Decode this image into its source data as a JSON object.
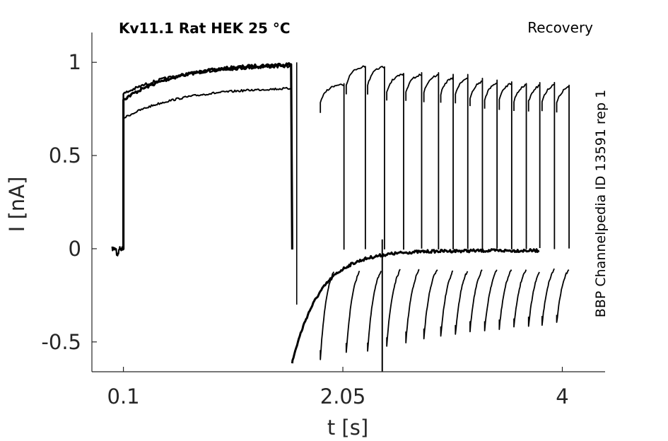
{
  "chart_data": {
    "type": "line",
    "title": "Kv11.1  Rat  HEK  25 °C",
    "subtitle": "Recovery",
    "side_label": "BBP Channelpedia ID 13591 rep 1",
    "xlabel": "t [s]",
    "ylabel": "I [nA]",
    "xlim": [
      -0.18,
      4.38
    ],
    "ylim": [
      -0.66,
      1.16
    ],
    "xticks": [
      0.1,
      2.05,
      4
    ],
    "xtick_labels": [
      "0.1",
      "2.05",
      "4"
    ],
    "yticks": [
      -0.5,
      0,
      0.5,
      1
    ],
    "ytick_labels": [
      "-0.5",
      "0",
      "0.5",
      "1"
    ],
    "grid": false,
    "line_color": "#000000",
    "prepulse": {
      "t_start": 0.1,
      "t_end": 1.6,
      "i_onset_upper": 0.8,
      "i_end_upper": 0.99,
      "i_onset_lower": 0.7,
      "i_end_lower": 0.86
    },
    "tail_min_nA": -0.61,
    "tail_baseline_nA": -0.01,
    "interval_starts_s": [
      1.85,
      2.08,
      2.27,
      2.44,
      2.61,
      2.77,
      2.92,
      3.05,
      3.18,
      3.31,
      3.44,
      3.57,
      3.7,
      3.82,
      3.95,
      4.08
    ],
    "interval_peaks_nA": [
      0.88,
      0.98,
      0.98,
      0.94,
      0.94,
      0.94,
      0.93,
      0.93,
      0.91,
      0.9,
      0.9,
      0.89,
      0.89,
      0.89,
      0.88,
      0.87
    ],
    "interval_dips_nA": [
      -0.54,
      -0.51,
      -0.5,
      -0.47,
      -0.45,
      -0.43,
      -0.42,
      -0.41,
      -0.39,
      -0.39,
      -0.38,
      -0.37,
      -0.37,
      -0.36,
      -0.35,
      -0.34
    ]
  }
}
